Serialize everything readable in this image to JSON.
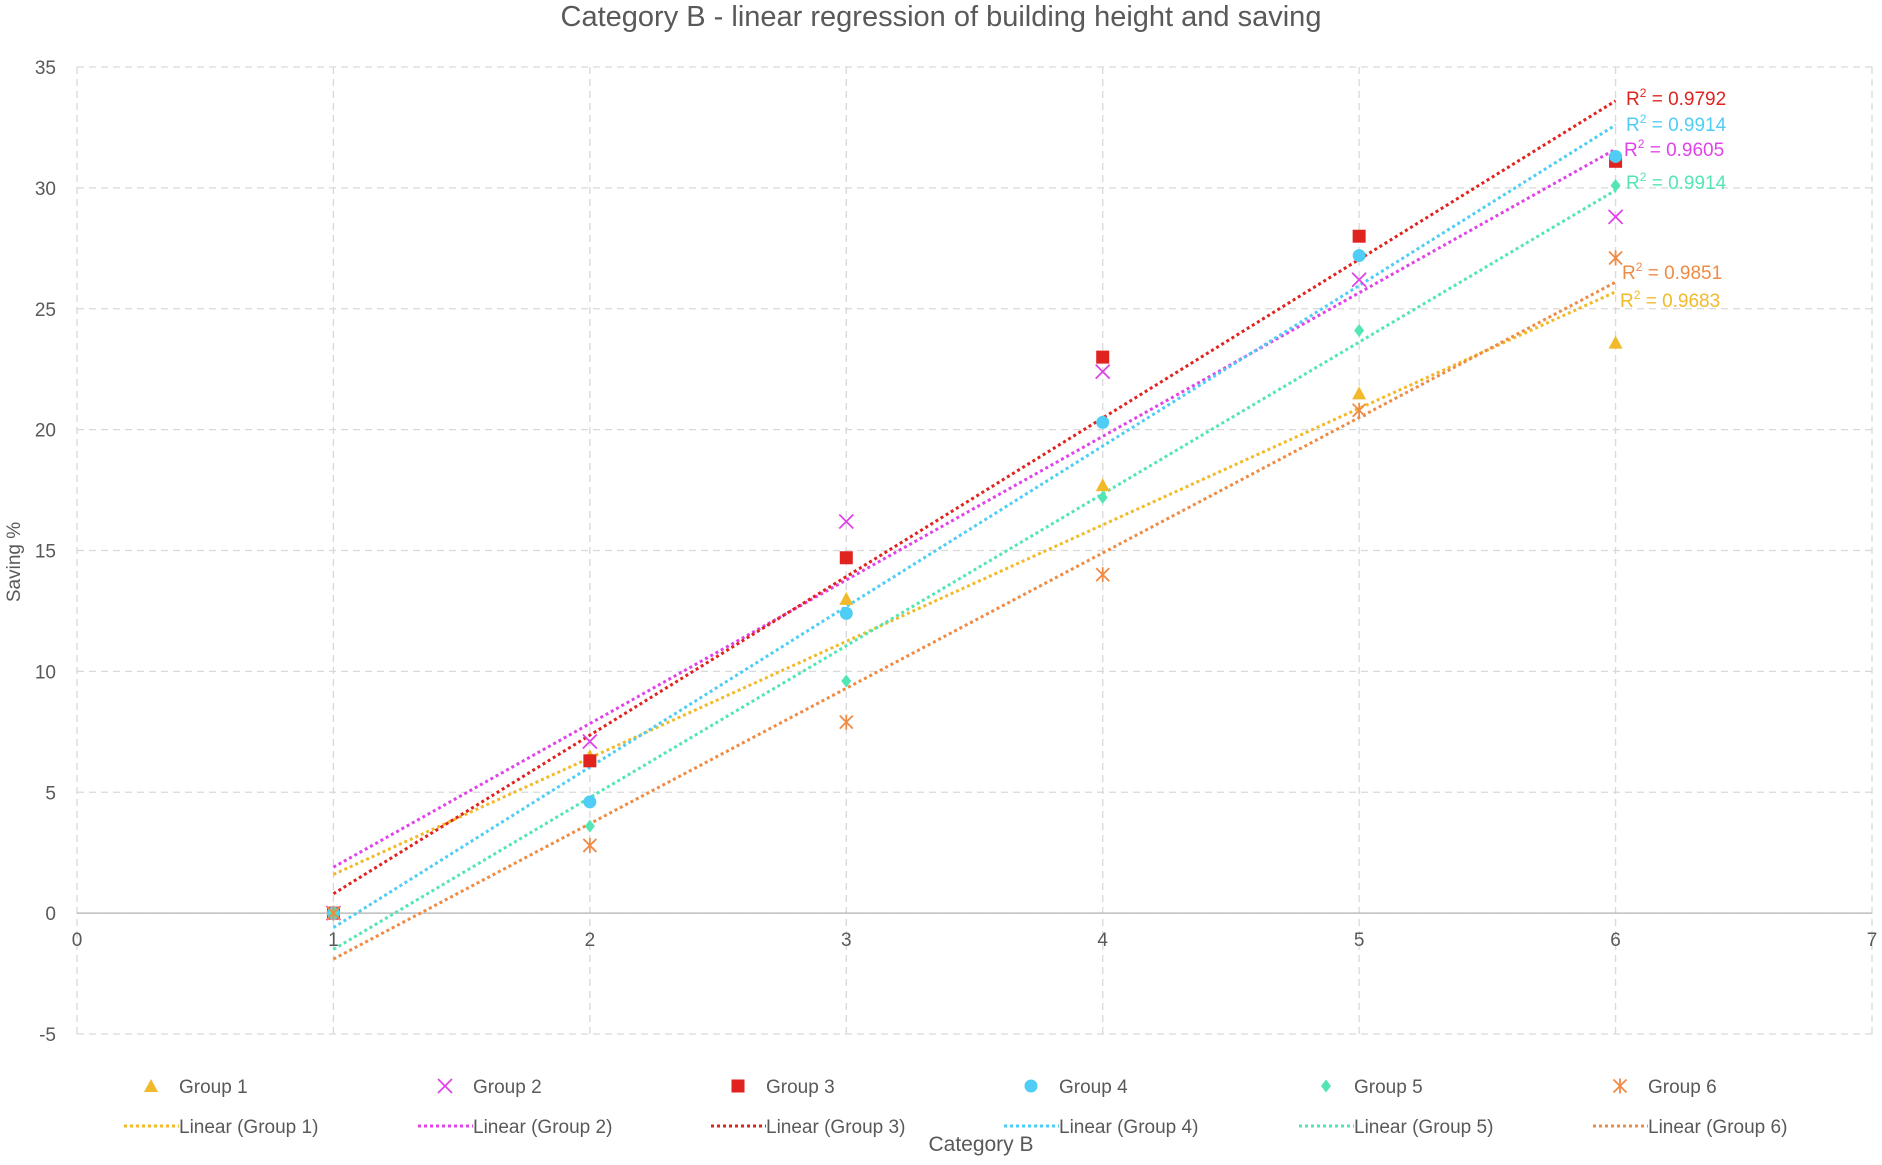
{
  "chart_data": {
    "type": "scatter",
    "title": "Category B - linear regression of building height and saving",
    "xlabel": "Category B",
    "ylabel": "Saving %",
    "xlim": [
      0,
      7
    ],
    "ylim": [
      -5,
      35
    ],
    "xticks": [
      0,
      1,
      2,
      3,
      4,
      5,
      6,
      7
    ],
    "yticks": [
      -5,
      0,
      5,
      10,
      15,
      20,
      25,
      30,
      35
    ],
    "grid": true,
    "legend_position": "bottom",
    "x": [
      1,
      2,
      3,
      4,
      5,
      6
    ],
    "series": [
      {
        "name": "Group 1",
        "trend_name": "Linear (Group 1)",
        "marker": "triangle",
        "color": "#F2BA2A",
        "values": [
          0,
          6.5,
          13.0,
          17.7,
          21.5,
          23.6
        ],
        "fit_line": [
          1.6,
          25.7
        ],
        "r2_text": "0.9683",
        "r2_prefix": "R",
        "r2_sup": "2",
        "r2_eq": " = "
      },
      {
        "name": "Group 2",
        "trend_name": "Linear (Group 2)",
        "marker": "x",
        "color": "#E044E8",
        "values": [
          0,
          7.1,
          16.2,
          22.4,
          26.2,
          28.8
        ],
        "fit_line": [
          1.9,
          31.6
        ],
        "r2_text": "0.9605",
        "r2_prefix": "R",
        "r2_sup": "2",
        "r2_eq": " = "
      },
      {
        "name": "Group 3",
        "trend_name": "Linear (Group 3)",
        "marker": "square",
        "color": "#E0231F",
        "values": [
          0,
          6.3,
          14.7,
          23.0,
          28.0,
          31.1
        ],
        "fit_line": [
          0.8,
          33.6
        ],
        "r2_text": "0.9792",
        "r2_prefix": "R",
        "r2_sup": "2",
        "r2_eq": " = "
      },
      {
        "name": "Group 4",
        "trend_name": "Linear (Group 4)",
        "marker": "circle",
        "color": "#4FCDF4",
        "values": [
          0,
          4.6,
          12.4,
          20.3,
          27.2,
          31.3
        ],
        "fit_line": [
          -0.6,
          32.6
        ],
        "r2_text": "0.9914",
        "r2_prefix": "R",
        "r2_sup": "2",
        "r2_eq": " = "
      },
      {
        "name": "Group 5",
        "trend_name": "Linear (Group 5)",
        "marker": "diamond",
        "color": "#53E6B4",
        "values": [
          0,
          3.6,
          9.6,
          17.2,
          24.1,
          30.1
        ],
        "fit_line": [
          -1.5,
          29.9
        ],
        "r2_text": "0.9914",
        "r2_prefix": "R",
        "r2_sup": "2",
        "r2_eq": " = "
      },
      {
        "name": "Group 6",
        "trend_name": "Linear (Group 6)",
        "marker": "asterisk",
        "color": "#EE8B45",
        "values": [
          0,
          2.8,
          7.9,
          14.0,
          20.8,
          27.1
        ],
        "fit_line": [
          -1.9,
          26.1
        ],
        "r2_text": "0.9851",
        "r2_prefix": "R",
        "r2_sup": "2",
        "r2_eq": " = "
      }
    ]
  }
}
